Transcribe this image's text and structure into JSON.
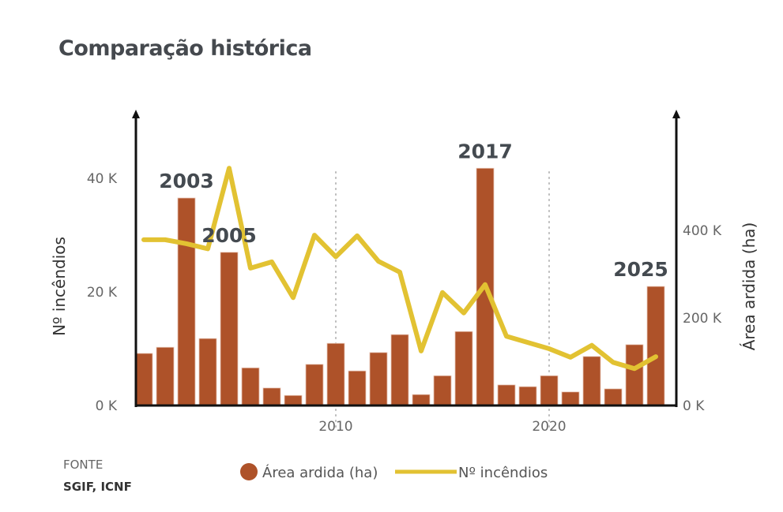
{
  "chart_data": {
    "type": "bar+line",
    "title": "Comparação histórica",
    "x": [
      2001,
      2002,
      2003,
      2004,
      2005,
      2006,
      2007,
      2008,
      2009,
      2010,
      2011,
      2012,
      2013,
      2014,
      2015,
      2016,
      2017,
      2018,
      2019,
      2020,
      2021,
      2022,
      2023,
      2024,
      2025
    ],
    "x_ticks": [
      "2010",
      "2020"
    ],
    "series": [
      {
        "name": "Área ardida (ha)",
        "type": "bar",
        "axis": "right",
        "color": "#AE5229",
        "values": [
          119000,
          133000,
          474000,
          153000,
          350000,
          86000,
          40000,
          23000,
          94000,
          142000,
          79000,
          121000,
          162000,
          25000,
          68000,
          169000,
          542000,
          47000,
          43000,
          68000,
          31000,
          112000,
          38000,
          139000,
          272000
        ]
      },
      {
        "name": "Nº incêndios",
        "type": "line",
        "axis": "left",
        "color": "#E2C232",
        "values": [
          29200,
          29200,
          28500,
          27600,
          41800,
          24200,
          25300,
          19000,
          30000,
          26200,
          29900,
          25400,
          23500,
          9600,
          19900,
          16300,
          21300,
          12200,
          11100,
          10000,
          8500,
          10600,
          7600,
          6500,
          8600
        ]
      }
    ],
    "left_axis": {
      "label": "Nº incêndios",
      "ticks": [
        "0 K",
        "20 K",
        "40 K"
      ],
      "tick_values": [
        0,
        20000,
        40000
      ],
      "range": [
        0,
        51000
      ]
    },
    "right_axis": {
      "label": "Área ardida (ha)",
      "ticks": [
        "0 K",
        "200 K",
        "400 K"
      ],
      "tick_values": [
        0,
        200000,
        400000
      ],
      "range": [
        0,
        665000
      ]
    },
    "annotations": [
      {
        "text": "2003",
        "year": 2003
      },
      {
        "text": "2005",
        "year": 2005
      },
      {
        "text": "2017",
        "year": 2017
      },
      {
        "text": "2025",
        "year": 2025
      }
    ],
    "legend": "bottom",
    "grid": "dotted vertical at x ticks"
  },
  "source": {
    "label": "FONTE",
    "value": "SGIF, ICNF"
  }
}
